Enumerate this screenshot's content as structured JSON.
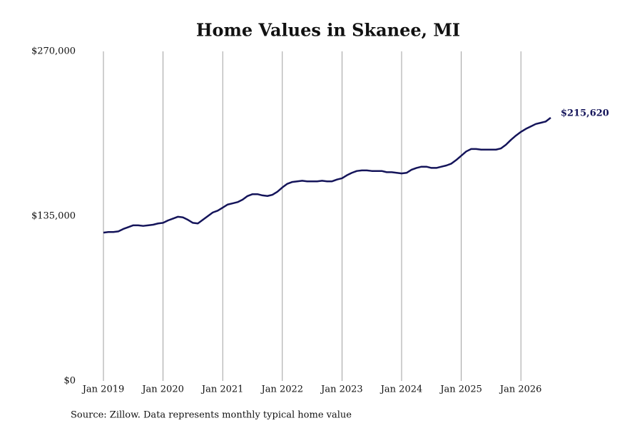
{
  "chart_data": {
    "type": "line",
    "title": "Home Values in Skanee, MI",
    "source": "Source: Zillow. Data represents monthly typical home value",
    "color": "#14145a",
    "x": [
      "2019-01",
      "2019-02",
      "2019-03",
      "2019-04",
      "2019-05",
      "2019-06",
      "2019-07",
      "2019-08",
      "2019-09",
      "2019-10",
      "2019-11",
      "2019-12",
      "2020-01",
      "2020-02",
      "2020-03",
      "2020-04",
      "2020-05",
      "2020-06",
      "2020-07",
      "2020-08",
      "2020-09",
      "2020-10",
      "2020-11",
      "2020-12",
      "2021-01",
      "2021-02",
      "2021-03",
      "2021-04",
      "2021-05",
      "2021-06",
      "2021-07",
      "2021-08",
      "2021-09",
      "2021-10",
      "2021-11",
      "2021-12",
      "2022-01",
      "2022-02",
      "2022-03",
      "2022-04",
      "2022-05",
      "2022-06",
      "2022-07",
      "2022-08",
      "2022-09",
      "2022-10",
      "2022-11",
      "2022-12",
      "2023-01",
      "2023-02",
      "2023-03",
      "2023-04",
      "2023-05",
      "2023-06",
      "2023-07",
      "2023-08",
      "2023-09",
      "2023-10",
      "2023-11",
      "2023-12",
      "2024-01",
      "2024-02",
      "2024-03",
      "2024-04",
      "2024-05",
      "2024-06",
      "2024-07",
      "2024-08",
      "2024-09",
      "2024-10",
      "2024-11",
      "2024-12",
      "2025-01",
      "2025-02",
      "2025-03",
      "2025-04",
      "2025-05",
      "2025-06",
      "2025-07",
      "2025-08",
      "2025-09",
      "2025-10",
      "2025-11",
      "2025-12",
      "2026-01",
      "2026-02",
      "2026-03",
      "2026-04",
      "2026-05",
      "2026-06",
      "2026-07"
    ],
    "values": [
      121500,
      122000,
      122000,
      122500,
      124500,
      126000,
      127500,
      127500,
      127000,
      127500,
      128000,
      129000,
      129500,
      131500,
      133000,
      134500,
      134000,
      132000,
      129500,
      129000,
      132000,
      135000,
      138000,
      139500,
      142000,
      144500,
      145500,
      146500,
      148500,
      151500,
      153000,
      153000,
      152000,
      151500,
      152500,
      155000,
      158500,
      161500,
      163000,
      163500,
      164000,
      163500,
      163500,
      163500,
      164000,
      163500,
      163500,
      165000,
      166000,
      168500,
      170500,
      172000,
      172500,
      172500,
      172000,
      172000,
      172000,
      171000,
      171000,
      170500,
      170000,
      170500,
      173000,
      174500,
      175500,
      175500,
      174500,
      174500,
      175500,
      176500,
      178000,
      181000,
      184500,
      188000,
      190000,
      190000,
      189500,
      189500,
      189500,
      189500,
      190500,
      193500,
      197500,
      201000,
      204000,
      206500,
      208500,
      210500,
      211500,
      212500,
      215620
    ],
    "value_labels": [
      null,
      null,
      null,
      null,
      null,
      null,
      null,
      null,
      null,
      null,
      null,
      null,
      null,
      null,
      null,
      null,
      null,
      null,
      null,
      null,
      null,
      null,
      null,
      null,
      null,
      null,
      null,
      null,
      null,
      null,
      null,
      null,
      null,
      null,
      null,
      null,
      null,
      null,
      null,
      null,
      null,
      null,
      null,
      null,
      null,
      null,
      null,
      null,
      null,
      null,
      null,
      null,
      null,
      null,
      null,
      null,
      null,
      null,
      null,
      null,
      null,
      null,
      null,
      null,
      null,
      null,
      null,
      null,
      null,
      null,
      null,
      null,
      null,
      null,
      null,
      null,
      null,
      null,
      null,
      null,
      null,
      null,
      null,
      null,
      null,
      null,
      null,
      null,
      null,
      null,
      "$215,620"
    ],
    "xlim": [
      "2019-01",
      "2026-07"
    ],
    "xticks": [
      {
        "value": "2019-01",
        "label": "Jan 2019"
      },
      {
        "value": "2020-01",
        "label": "Jan 2020"
      },
      {
        "value": "2021-01",
        "label": "Jan 2021"
      },
      {
        "value": "2022-01",
        "label": "Jan 2022"
      },
      {
        "value": "2023-01",
        "label": "Jan 2023"
      },
      {
        "value": "2024-01",
        "label": "Jan 2024"
      },
      {
        "value": "2025-01",
        "label": "Jan 2025"
      },
      {
        "value": "2026-01",
        "label": "Jan 2026"
      }
    ],
    "ylim": [
      0,
      270000
    ],
    "yticks": [
      {
        "value": 0,
        "label": "$0"
      },
      {
        "value": 135000,
        "label": "$135,000"
      },
      {
        "value": 270000,
        "label": "$270,000"
      }
    ],
    "grid": "x"
  }
}
